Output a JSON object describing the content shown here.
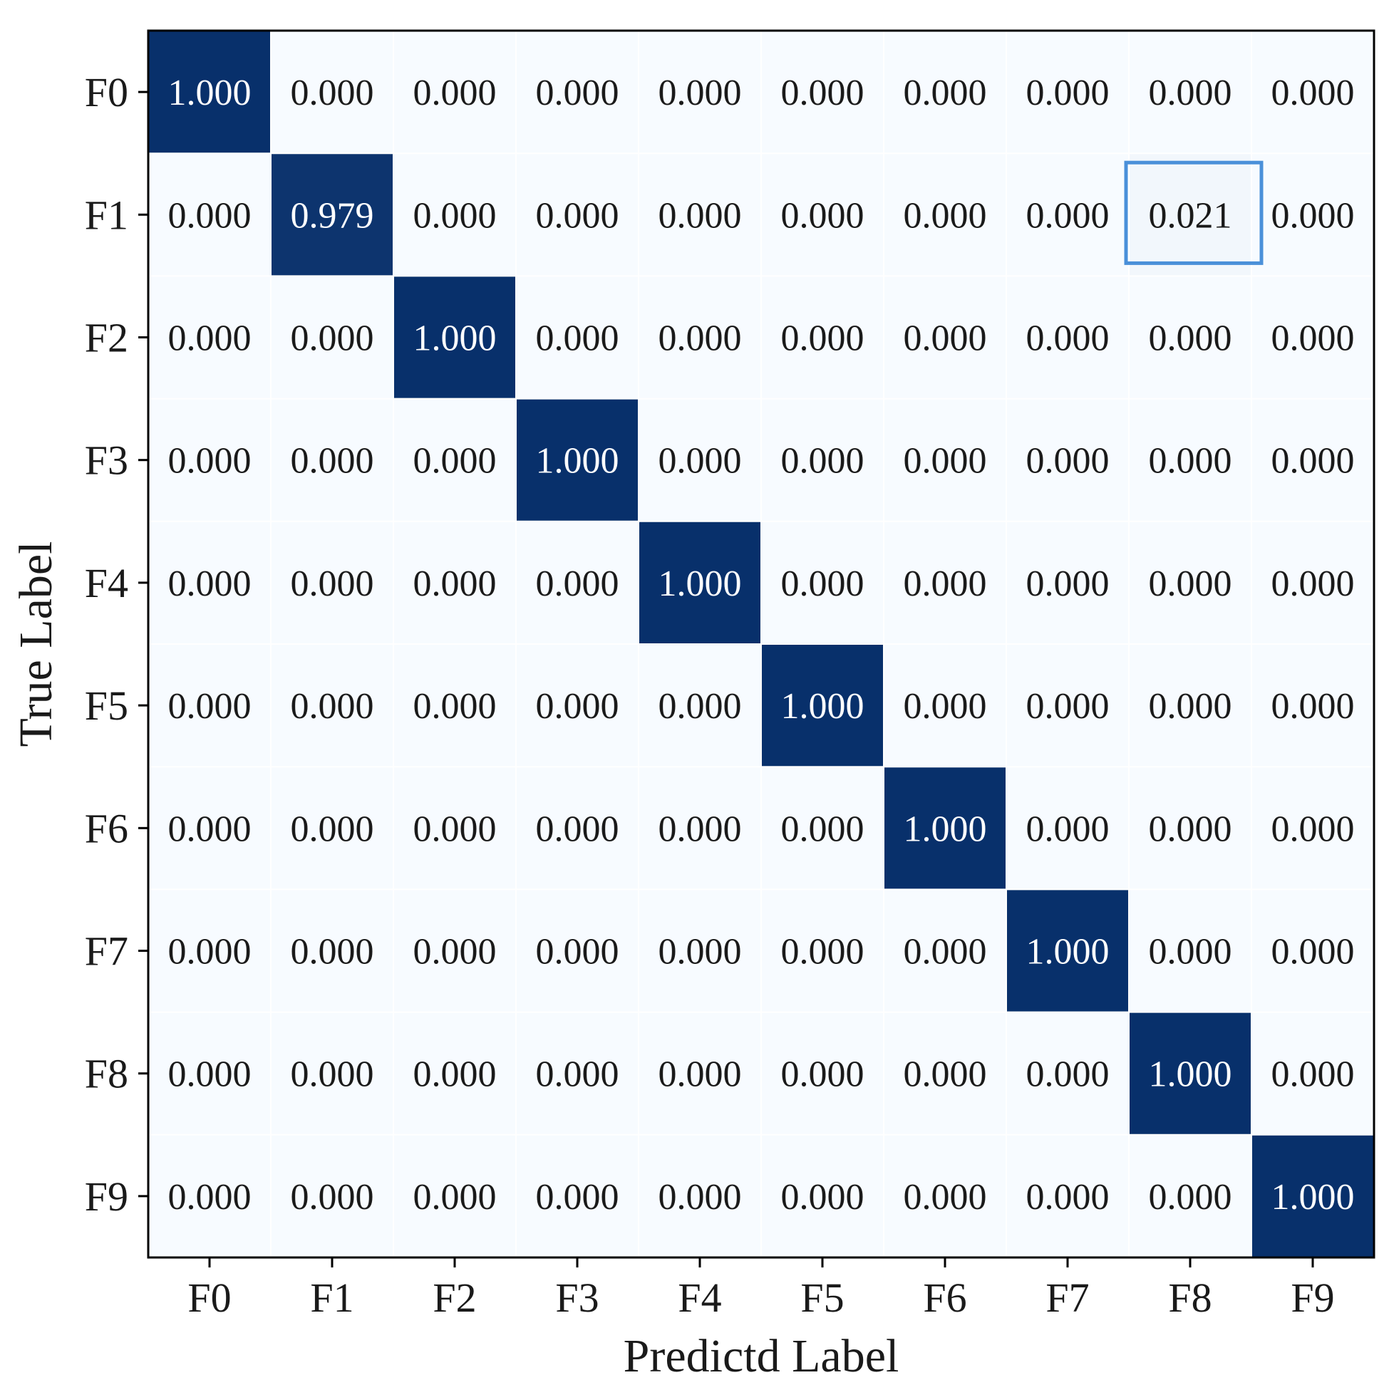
{
  "chart_data": {
    "type": "heatmap",
    "title": "",
    "xlabel": "Predictd Label",
    "ylabel": "True Label",
    "x_categories": [
      "F0",
      "F1",
      "F2",
      "F3",
      "F4",
      "F5",
      "F6",
      "F7",
      "F8",
      "F9"
    ],
    "y_categories": [
      "F0",
      "F1",
      "F2",
      "F3",
      "F4",
      "F5",
      "F6",
      "F7",
      "F8",
      "F9"
    ],
    "value_range": [
      0,
      1
    ],
    "value_format": "3 decimals",
    "values": [
      [
        1.0,
        0.0,
        0.0,
        0.0,
        0.0,
        0.0,
        0.0,
        0.0,
        0.0,
        0.0
      ],
      [
        0.0,
        0.979,
        0.0,
        0.0,
        0.0,
        0.0,
        0.0,
        0.0,
        0.021,
        0.0
      ],
      [
        0.0,
        0.0,
        1.0,
        0.0,
        0.0,
        0.0,
        0.0,
        0.0,
        0.0,
        0.0
      ],
      [
        0.0,
        0.0,
        0.0,
        1.0,
        0.0,
        0.0,
        0.0,
        0.0,
        0.0,
        0.0
      ],
      [
        0.0,
        0.0,
        0.0,
        0.0,
        1.0,
        0.0,
        0.0,
        0.0,
        0.0,
        0.0
      ],
      [
        0.0,
        0.0,
        0.0,
        0.0,
        0.0,
        1.0,
        0.0,
        0.0,
        0.0,
        0.0
      ],
      [
        0.0,
        0.0,
        0.0,
        0.0,
        0.0,
        0.0,
        1.0,
        0.0,
        0.0,
        0.0
      ],
      [
        0.0,
        0.0,
        0.0,
        0.0,
        0.0,
        0.0,
        0.0,
        1.0,
        0.0,
        0.0
      ],
      [
        0.0,
        0.0,
        0.0,
        0.0,
        0.0,
        0.0,
        0.0,
        0.0,
        1.0,
        0.0
      ],
      [
        0.0,
        0.0,
        0.0,
        0.0,
        0.0,
        0.0,
        0.0,
        0.0,
        0.0,
        1.0
      ]
    ],
    "highlight": {
      "row": "F1",
      "col": "F8"
    },
    "colors": {
      "low": "#f7fbff",
      "high": "#08306b",
      "text_dark": "#1a1a1a",
      "text_light": "#ffffff",
      "highlight_border": "#4a90d9",
      "axis": "#000000"
    }
  }
}
